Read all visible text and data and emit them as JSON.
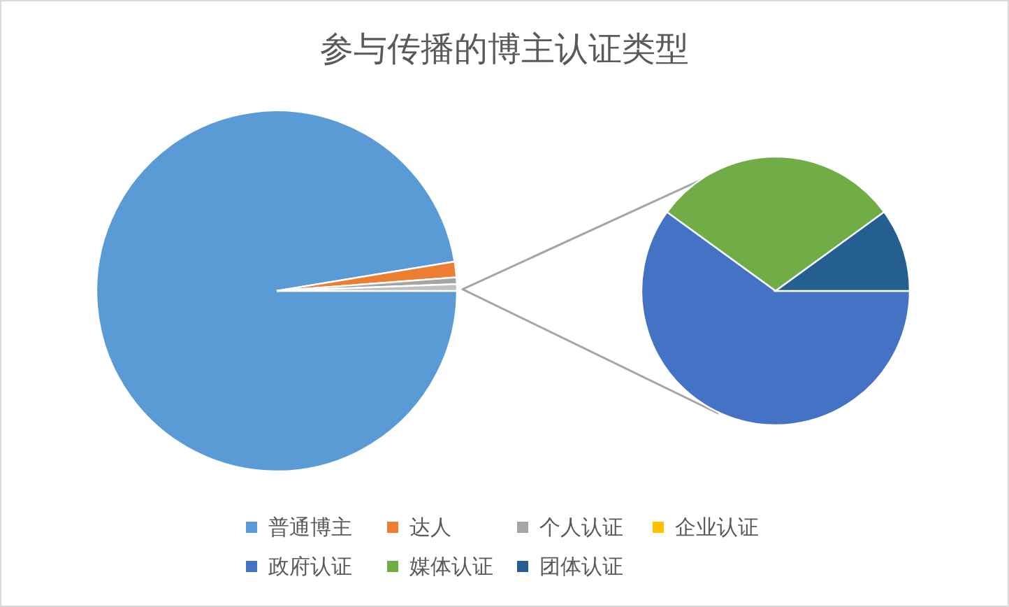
{
  "chart_data": [
    {
      "type": "pie",
      "title": "参与传播的博主认证类型",
      "categories": [
        "普通博主",
        "达人",
        "个人认证",
        "企业认证",
        null
      ],
      "values": [
        97.4,
        1.4,
        0.6,
        null,
        0.6
      ],
      "colors": [
        "#5b9bd5",
        "#ed7d31",
        "#a5a5a5",
        "#ffc000",
        "#bfbfbf"
      ],
      "legend": "bottom"
    },
    {
      "type": "pie",
      "categories": [
        "政府认证",
        "媒体认证",
        "团体认证"
      ],
      "values": [
        60,
        30,
        10
      ],
      "colors": [
        "#4472c4",
        "#70ad47",
        "#255e91"
      ],
      "legend": "bottom"
    }
  ]
}
